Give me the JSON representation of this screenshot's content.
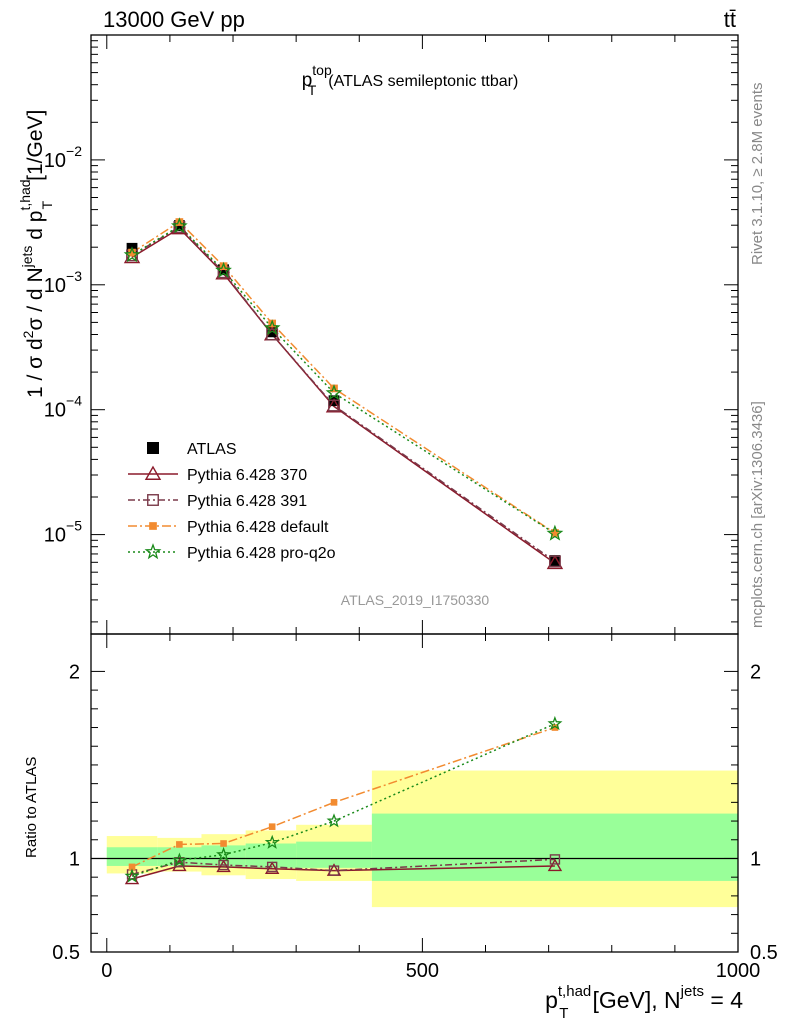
{
  "header": {
    "energy": "13000 GeV pp",
    "process": "tt̄"
  },
  "side_labels": {
    "rivet": "Rivet 3.1.10, ≥ 2.8M events",
    "mcplots": "mcplots.cern.ch [arXiv:1306.3436]"
  },
  "analysis_id": "ATLAS_2019_I1750330",
  "chart_data": [
    {
      "type": "line",
      "title": "p_T^top (ATLAS semileptonic ttbar)",
      "ylabel": "1 / σ d²σ / d N^jets d p_T^t,had [1/GeV]",
      "yscale": "log",
      "ylim": [
        1.6e-06,
        0.1
      ],
      "xlim": [
        -25,
        1000
      ],
      "yticks": [
        {
          "value": 0.01,
          "base": "10",
          "exp": "−2"
        },
        {
          "value": 0.001,
          "base": "10",
          "exp": "−3"
        },
        {
          "value": 0.0001,
          "base": "10",
          "exp": "−4"
        },
        {
          "value": 1e-05,
          "base": "10",
          "exp": "−5"
        }
      ],
      "legend_position": "bottom-left",
      "x": [
        40,
        115,
        185,
        262,
        360,
        710
      ],
      "data": {
        "name": "ATLAS",
        "color": "#000000",
        "values": [
          0.00196,
          0.00298,
          0.00132,
          0.00042,
          0.000118,
          6.2e-06
        ]
      },
      "series": [
        {
          "name": "Pythia 6.428 370",
          "color": "#8b1a2b",
          "marker": "triangle-open",
          "dash": "",
          "values": [
            0.00166,
            0.00283,
            0.00123,
            0.0004,
            0.000106,
            5.9e-06
          ]
        },
        {
          "name": "Pythia 6.428 391",
          "color": "#7a3a4a",
          "marker": "square-open",
          "dash": "7,3,2,3",
          "values": [
            0.00172,
            0.0029,
            0.00126,
            0.0004,
            0.000108,
            6.1e-06
          ]
        },
        {
          "name": "Pythia 6.428 default",
          "color": "#f28b30",
          "marker": "square-filled",
          "dash": "9,3,2,3",
          "values": [
            0.00181,
            0.00318,
            0.00141,
            0.00049,
            0.000148,
            1.03e-05
          ]
        },
        {
          "name": "Pythia 6.428 pro-q2o",
          "color": "#1a8a1a",
          "marker": "star",
          "dash": "2,3",
          "values": [
            0.00173,
            0.00295,
            0.0013,
            0.00045,
            0.000136,
            1.02e-05
          ]
        }
      ]
    },
    {
      "type": "line",
      "ylabel": "Ratio to ATLAS",
      "xlabel": "p_T^t,had [GeV], N^jets = 4",
      "ylim": [
        0.5,
        2.2
      ],
      "yticks": [
        0.5,
        1,
        2
      ],
      "xticks": [
        0,
        500,
        1000
      ],
      "bands": [
        {
          "x0": 0,
          "x1": 80,
          "inner": [
            0.96,
            1.06
          ],
          "outer": [
            0.92,
            1.12
          ]
        },
        {
          "x0": 80,
          "x1": 150,
          "inner": [
            0.96,
            1.06
          ],
          "outer": [
            0.93,
            1.11
          ]
        },
        {
          "x0": 150,
          "x1": 220,
          "inner": [
            0.95,
            1.07
          ],
          "outer": [
            0.91,
            1.13
          ]
        },
        {
          "x0": 220,
          "x1": 300,
          "inner": [
            0.95,
            1.08
          ],
          "outer": [
            0.89,
            1.15
          ]
        },
        {
          "x0": 300,
          "x1": 420,
          "inner": [
            0.95,
            1.09
          ],
          "outer": [
            0.88,
            1.18
          ]
        },
        {
          "x0": 420,
          "x1": 1000,
          "inner": [
            0.88,
            1.24
          ],
          "outer": [
            0.74,
            1.47
          ]
        }
      ],
      "series": [
        {
          "name": "Pythia 6.428 370",
          "values": [
            0.89,
            0.96,
            0.955,
            0.945,
            0.935,
            0.96
          ]
        },
        {
          "name": "Pythia 6.428 391",
          "values": [
            0.915,
            0.98,
            0.965,
            0.955,
            0.935,
            0.995
          ]
        },
        {
          "name": "Pythia 6.428 default",
          "values": [
            0.955,
            1.075,
            1.08,
            1.17,
            1.3,
            1.7
          ]
        },
        {
          "name": "Pythia 6.428 pro-q2o",
          "values": [
            0.905,
            0.99,
            1.02,
            1.085,
            1.2,
            1.72
          ]
        }
      ]
    }
  ]
}
